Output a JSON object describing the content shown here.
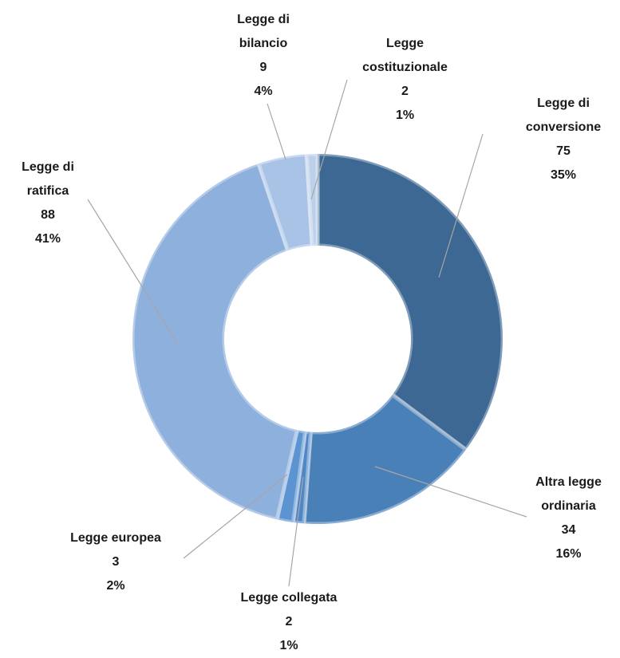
{
  "chart_data": {
    "type": "donut",
    "categories": [
      "Legge di conversione",
      "Altra legge ordinaria",
      "Legge collegata",
      "Legge europea",
      "Legge di ratifica",
      "Legge di bilancio",
      "Legge costituzionale"
    ],
    "values": [
      75,
      34,
      2,
      3,
      88,
      9,
      2
    ],
    "percent_labels": [
      "35%",
      "16%",
      "1%",
      "2%",
      "41%",
      "4%",
      "1%"
    ],
    "colors": [
      "#3d6894",
      "#4a80b8",
      "#4f87c6",
      "#5b94d1",
      "#8eb0dc",
      "#a8c3e6",
      "#bcd0ea"
    ]
  }
}
